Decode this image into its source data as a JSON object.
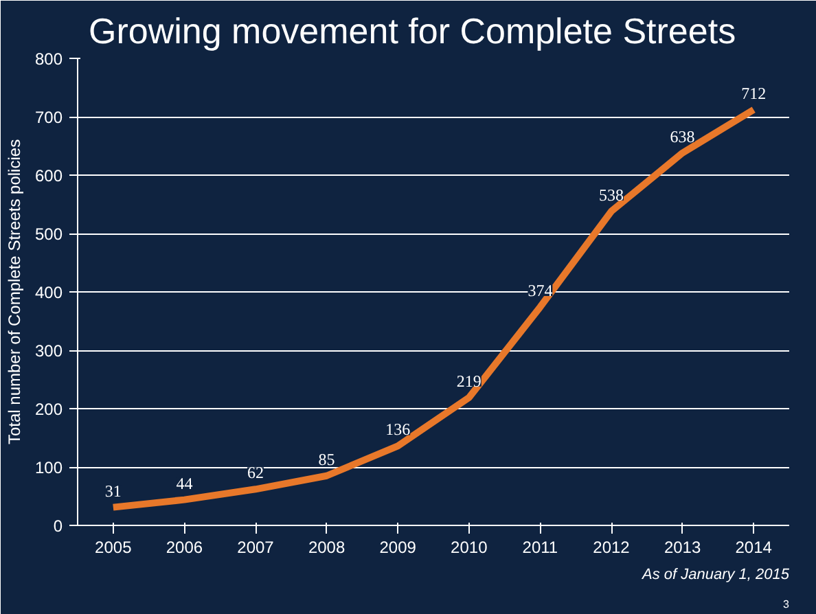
{
  "chart_data": {
    "type": "line",
    "title": "Growing movement for Complete Streets",
    "ylabel": "Total number of Complete Streets policies",
    "categories": [
      "2005",
      "2006",
      "2007",
      "2008",
      "2009",
      "2010",
      "2011",
      "2012",
      "2013",
      "2014"
    ],
    "series": [
      {
        "color": "#e8782a",
        "values": [
          31,
          44,
          62,
          85,
          136,
          219,
          374,
          538,
          638,
          712
        ]
      }
    ],
    "ylim": [
      0,
      800
    ],
    "yticks": [
      0,
      100,
      200,
      300,
      400,
      500,
      600,
      700,
      800
    ],
    "grid": "y",
    "data_labels": true,
    "annotations": [
      "As of January 1, 2015",
      "3"
    ]
  }
}
